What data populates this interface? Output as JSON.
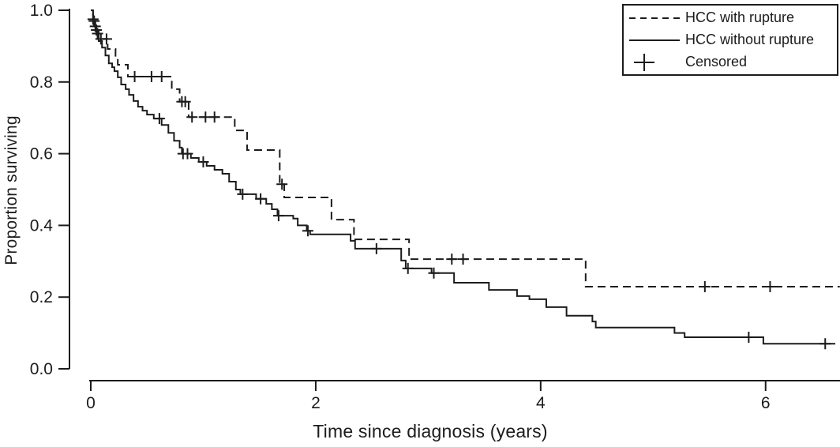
{
  "chart_data": {
    "type": "line",
    "subtype": "kaplan-meier-step",
    "title": "",
    "xlabel": "Time since diagnosis (years)",
    "ylabel": "Proportion surviving",
    "xlim": [
      0,
      6.66
    ],
    "ylim": [
      0,
      1.0
    ],
    "grid": false,
    "legend_position": "top-right",
    "color": "#1c1c1c",
    "x_ticks": [
      {
        "value": 0,
        "label": "0"
      },
      {
        "value": 2,
        "label": "2"
      },
      {
        "value": 4,
        "label": "4"
      },
      {
        "value": 6,
        "label": "6"
      }
    ],
    "y_ticks": [
      {
        "value": 0.0,
        "label": "0.0"
      },
      {
        "value": 0.2,
        "label": "0.2"
      },
      {
        "value": 0.4,
        "label": "0.4"
      },
      {
        "value": 0.6,
        "label": "0.6"
      },
      {
        "value": 0.8,
        "label": "0.8"
      },
      {
        "value": 1.0,
        "label": "1.0"
      }
    ],
    "series": [
      {
        "name": "HCC with rupture",
        "line_style": "dashed",
        "start": [
          0,
          1.0
        ],
        "end_time": 6.66,
        "steps": [
          [
            0.02,
            0.97
          ],
          [
            0.04,
            0.945
          ],
          [
            0.07,
            0.92
          ],
          [
            0.15,
            0.892
          ],
          [
            0.22,
            0.87
          ],
          [
            0.24,
            0.848
          ],
          [
            0.33,
            0.815
          ],
          [
            0.72,
            0.78
          ],
          [
            0.79,
            0.745
          ],
          [
            0.87,
            0.702
          ],
          [
            1.28,
            0.665
          ],
          [
            1.39,
            0.61
          ],
          [
            1.68,
            0.515
          ],
          [
            1.72,
            0.478
          ],
          [
            2.14,
            0.416
          ],
          [
            2.34,
            0.361
          ],
          [
            2.83,
            0.306
          ],
          [
            4.4,
            0.229
          ]
        ],
        "censored": [
          [
            0.03,
            0.97
          ],
          [
            0.05,
            0.945
          ],
          [
            0.09,
            0.92
          ],
          [
            0.14,
            0.92
          ],
          [
            0.39,
            0.815
          ],
          [
            0.54,
            0.815
          ],
          [
            0.63,
            0.815
          ],
          [
            0.81,
            0.745
          ],
          [
            0.84,
            0.745
          ],
          [
            0.9,
            0.702
          ],
          [
            1.02,
            0.702
          ],
          [
            1.1,
            0.702
          ],
          [
            1.7,
            0.515
          ],
          [
            3.21,
            0.306
          ],
          [
            3.31,
            0.306
          ],
          [
            5.46,
            0.229
          ],
          [
            6.04,
            0.229
          ]
        ]
      },
      {
        "name": "HCC without rupture",
        "line_style": "solid",
        "start": [
          0,
          1.0
        ],
        "end_time": 6.62,
        "steps": [
          [
            0.02,
            0.975
          ],
          [
            0.03,
            0.955
          ],
          [
            0.05,
            0.935
          ],
          [
            0.07,
            0.914
          ],
          [
            0.1,
            0.896
          ],
          [
            0.13,
            0.874
          ],
          [
            0.16,
            0.852
          ],
          [
            0.19,
            0.841
          ],
          [
            0.21,
            0.83
          ],
          [
            0.24,
            0.813
          ],
          [
            0.27,
            0.793
          ],
          [
            0.31,
            0.78
          ],
          [
            0.34,
            0.764
          ],
          [
            0.38,
            0.747
          ],
          [
            0.42,
            0.731
          ],
          [
            0.46,
            0.72
          ],
          [
            0.5,
            0.709
          ],
          [
            0.56,
            0.698
          ],
          [
            0.63,
            0.68
          ],
          [
            0.69,
            0.658
          ],
          [
            0.74,
            0.636
          ],
          [
            0.79,
            0.617
          ],
          [
            0.81,
            0.6
          ],
          [
            0.89,
            0.588
          ],
          [
            0.96,
            0.577
          ],
          [
            1.03,
            0.566
          ],
          [
            1.1,
            0.555
          ],
          [
            1.17,
            0.544
          ],
          [
            1.23,
            0.522
          ],
          [
            1.29,
            0.5
          ],
          [
            1.33,
            0.487
          ],
          [
            1.47,
            0.474
          ],
          [
            1.56,
            0.46
          ],
          [
            1.61,
            0.445
          ],
          [
            1.66,
            0.427
          ],
          [
            1.8,
            0.419
          ],
          [
            1.84,
            0.4
          ],
          [
            1.92,
            0.385
          ],
          [
            1.95,
            0.375
          ],
          [
            2.31,
            0.357
          ],
          [
            2.35,
            0.335
          ],
          [
            2.76,
            0.302
          ],
          [
            2.8,
            0.28
          ],
          [
            3.03,
            0.267
          ],
          [
            3.23,
            0.24
          ],
          [
            3.54,
            0.22
          ],
          [
            3.79,
            0.203
          ],
          [
            3.9,
            0.194
          ],
          [
            4.05,
            0.172
          ],
          [
            4.23,
            0.148
          ],
          [
            4.46,
            0.132
          ],
          [
            4.49,
            0.115
          ],
          [
            5.19,
            0.1
          ],
          [
            5.28,
            0.088
          ],
          [
            5.98,
            0.07
          ]
        ],
        "censored": [
          [
            0.02,
            0.975
          ],
          [
            0.04,
            0.955
          ],
          [
            0.06,
            0.935
          ],
          [
            0.61,
            0.698
          ],
          [
            0.82,
            0.6
          ],
          [
            0.86,
            0.6
          ],
          [
            1.0,
            0.577
          ],
          [
            1.35,
            0.487
          ],
          [
            1.51,
            0.474
          ],
          [
            1.67,
            0.427
          ],
          [
            1.93,
            0.385
          ],
          [
            2.54,
            0.335
          ],
          [
            2.82,
            0.28
          ],
          [
            3.05,
            0.267
          ],
          [
            5.85,
            0.088
          ],
          [
            6.53,
            0.07
          ]
        ]
      }
    ],
    "legend": [
      {
        "label": "HCC with rupture",
        "marker": "dashed-line"
      },
      {
        "label": "HCC without rupture",
        "marker": "solid-line"
      },
      {
        "label": "Censored",
        "marker": "plus"
      }
    ]
  }
}
